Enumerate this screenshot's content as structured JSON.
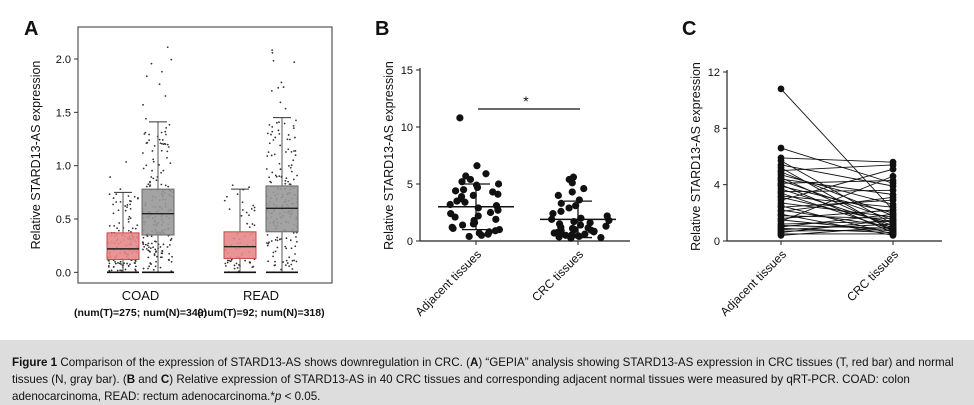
{
  "figure": {
    "panels": [
      {
        "letter": "A"
      },
      {
        "letter": "B"
      },
      {
        "letter": "C"
      }
    ]
  },
  "caption": {
    "label": "Figure 1",
    "segments": [
      {
        "text": " Comparison of the expression of STARD13-AS shows downregulation in CRC. (",
        "bold": false
      },
      {
        "text": "A",
        "bold": true
      },
      {
        "text": ") “GEPIA” analysis showing STARD13-AS expression in CRC tissues (T, red bar) and normal tissues (N, gray bar). (",
        "bold": false
      },
      {
        "text": "B",
        "bold": true
      },
      {
        "text": " and ",
        "bold": false
      },
      {
        "text": "C",
        "bold": true
      },
      {
        "text": ") Relative expression of STARD13-AS in 40 CRC tissues and corresponding adjacent normal tissues were measured by qRT-PCR. COAD: colon adenocarcinoma, READ: rectum adenocarcinoma.*",
        "bold": false
      },
      {
        "text": "p",
        "bold": false,
        "italic": true
      },
      {
        "text": " < 0.05.",
        "bold": false
      }
    ]
  },
  "colors": {
    "tumor_box": "#e88a8a",
    "tumor_edge": "#c84a4a",
    "normal_box": "#999999",
    "normal_edge": "#666666",
    "caption_bg": "#dddddd"
  },
  "chart_data": [
    {
      "id": "A",
      "type": "box",
      "ylabel": "Relative STARD13-AS expression",
      "ylim": [
        -0.1,
        2.3
      ],
      "yticks": [
        0.0,
        0.5,
        1.0,
        1.5,
        2.0
      ],
      "ytick_labels": [
        "0.0",
        "0.5",
        "1.0",
        "1.5",
        "2.0"
      ],
      "groups": [
        {
          "name": "COAD",
          "sub": "(num(T)=275; num(N)=349)",
          "boxes": [
            {
              "label": "T",
              "q1": 0.12,
              "median": 0.22,
              "q3": 0.37,
              "whisker_low": 0.0,
              "whisker_high": 0.75,
              "max": 1.15
            },
            {
              "label": "N",
              "q1": 0.35,
              "median": 0.55,
              "q3": 0.78,
              "whisker_low": 0.0,
              "whisker_high": 1.41,
              "max": 2.2
            }
          ]
        },
        {
          "name": "READ",
          "sub": "(num(T)=92; num(N)=318)",
          "boxes": [
            {
              "label": "T",
              "q1": 0.13,
              "median": 0.24,
              "q3": 0.38,
              "whisker_low": 0.0,
              "whisker_high": 0.78,
              "max": 0.96
            },
            {
              "label": "N",
              "q1": 0.38,
              "median": 0.6,
              "q3": 0.81,
              "whisker_low": 0.0,
              "whisker_high": 1.45,
              "max": 2.2
            }
          ]
        }
      ]
    },
    {
      "id": "B",
      "type": "scatter",
      "ylabel": "Relative STARD13-AS expression",
      "ylim": [
        0,
        15
      ],
      "yticks": [
        0,
        5,
        10,
        15
      ],
      "ytick_labels": [
        "0",
        "5",
        "10",
        "15"
      ],
      "categories": [
        "Adjacent tissues",
        "CRC tissues"
      ],
      "significance": "*",
      "series": [
        {
          "name": "Adjacent tissues",
          "mean": 3.0,
          "sd": 2.0,
          "values": [
            10.8,
            6.6,
            5.9,
            5.7,
            5.4,
            5.2,
            5.0,
            4.9,
            4.7,
            4.5,
            4.4,
            4.3,
            4.1,
            4.0,
            3.9,
            3.7,
            3.5,
            3.4,
            3.2,
            3.1,
            2.9,
            2.7,
            2.5,
            2.4,
            2.2,
            2.1,
            1.9,
            1.8,
            1.6,
            1.5,
            1.4,
            1.2,
            1.1,
            1.0,
            0.9,
            0.8,
            0.7,
            0.6,
            0.5,
            0.4
          ]
        },
        {
          "name": "CRC tissues",
          "mean": 1.9,
          "sd": 1.6,
          "values": [
            5.6,
            5.4,
            5.1,
            4.6,
            4.3,
            4.0,
            3.6,
            3.3,
            3.1,
            2.9,
            2.6,
            2.4,
            2.2,
            2.0,
            1.9,
            1.8,
            1.7,
            1.6,
            1.5,
            1.4,
            1.3,
            1.2,
            1.15,
            1.1,
            1.0,
            0.95,
            0.9,
            0.85,
            0.8,
            0.75,
            0.7,
            0.65,
            0.6,
            0.55,
            0.5,
            0.45,
            0.4,
            0.35,
            0.3,
            0.25
          ]
        }
      ]
    },
    {
      "id": "C",
      "type": "paired-line",
      "ylabel": "Relative STARD13-AS expression",
      "ylim": [
        0,
        12
      ],
      "yticks": [
        0,
        4,
        8,
        12
      ],
      "ytick_labels": [
        "0",
        "4",
        "8",
        "12"
      ],
      "categories": [
        "Adjacent tissues",
        "CRC tissues"
      ],
      "pairs": [
        [
          10.8,
          2.2
        ],
        [
          6.6,
          4.1
        ],
        [
          5.9,
          5.6
        ],
        [
          5.7,
          1.2
        ],
        [
          5.4,
          3.9
        ],
        [
          5.2,
          0.7
        ],
        [
          5.0,
          5.4
        ],
        [
          4.9,
          1.8
        ],
        [
          4.7,
          2.6
        ],
        [
          4.5,
          0.9
        ],
        [
          4.4,
          3.3
        ],
        [
          4.3,
          1.5
        ],
        [
          4.1,
          4.3
        ],
        [
          4.0,
          0.6
        ],
        [
          3.9,
          2.0
        ],
        [
          3.7,
          1.1
        ],
        [
          3.5,
          3.6
        ],
        [
          3.4,
          0.8
        ],
        [
          3.2,
          2.4
        ],
        [
          3.1,
          1.3
        ],
        [
          2.9,
          5.1
        ],
        [
          2.7,
          1.7
        ],
        [
          2.5,
          0.5
        ],
        [
          2.4,
          2.9
        ],
        [
          2.2,
          1.0
        ],
        [
          2.1,
          3.1
        ],
        [
          1.9,
          0.4
        ],
        [
          1.8,
          1.6
        ],
        [
          1.6,
          2.2
        ],
        [
          1.5,
          0.7
        ],
        [
          1.4,
          4.6
        ],
        [
          1.2,
          1.4
        ],
        [
          1.1,
          0.9
        ],
        [
          1.0,
          1.9
        ],
        [
          0.9,
          0.6
        ],
        [
          0.8,
          1.2
        ],
        [
          0.7,
          0.8
        ],
        [
          0.6,
          1.5
        ],
        [
          0.5,
          0.5
        ],
        [
          0.4,
          1.0
        ]
      ]
    }
  ]
}
